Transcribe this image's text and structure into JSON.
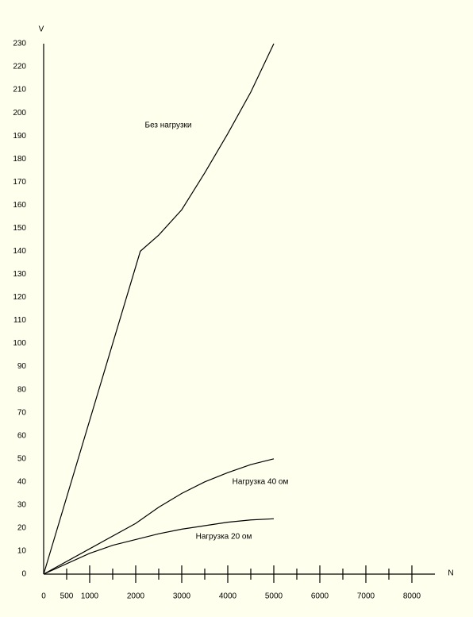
{
  "chart_data": {
    "type": "line",
    "x_label": "N",
    "y_label": "V",
    "xlim": [
      0,
      8500
    ],
    "ylim": [
      0,
      230
    ],
    "xticks": [
      0,
      500,
      1000,
      2000,
      3000,
      4000,
      5000,
      6000,
      7000,
      8000
    ],
    "xminor_ticks": [
      1500,
      2500,
      3500,
      4500,
      5500,
      6500,
      7500
    ],
    "yticks": [
      0,
      10,
      20,
      30,
      40,
      50,
      60,
      70,
      80,
      90,
      100,
      110,
      120,
      130,
      140,
      150,
      160,
      170,
      180,
      190,
      200,
      210,
      220,
      230
    ],
    "color": "#000000",
    "series": [
      {
        "x": [
          0,
          2100,
          2500,
          3000,
          3500,
          4000,
          4500,
          5000
        ],
        "values": [
          0,
          140,
          147,
          158,
          174,
          191,
          209,
          230
        ]
      },
      {
        "x": [
          0,
          1000,
          2000,
          2500,
          3000,
          3500,
          4000,
          4500,
          5000
        ],
        "values": [
          0,
          11,
          22,
          29,
          35,
          40,
          44,
          47.5,
          50
        ]
      },
      {
        "x": [
          0,
          1000,
          1500,
          2000,
          2500,
          3000,
          3500,
          4000,
          4500,
          5000
        ],
        "values": [
          0,
          9,
          12.5,
          15,
          17.5,
          19.5,
          21,
          22.5,
          23.5,
          24
        ]
      }
    ],
    "annotations": [
      "Без нагрузки",
      "Нагрузка 40 ом",
      "Нагрузка 20 ом"
    ]
  }
}
